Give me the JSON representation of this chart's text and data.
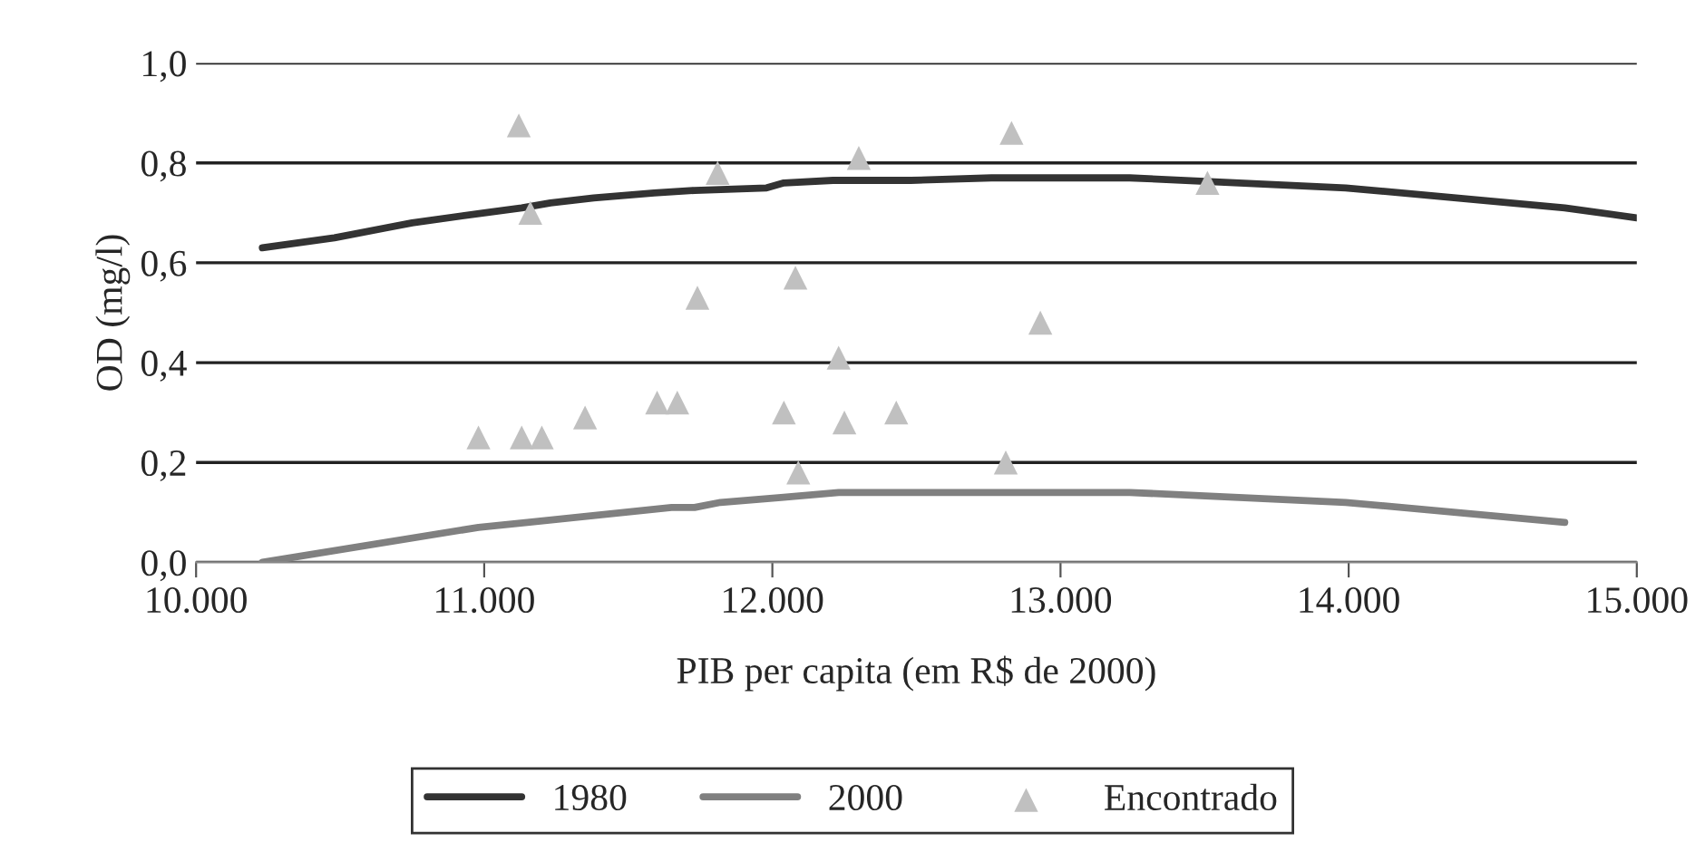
{
  "chart_data": {
    "type": "line",
    "xlabel": "PIB per capita (em R$ de 2000)",
    "ylabel": "OD (mg/l)",
    "xlim": [
      10000,
      15000
    ],
    "xticks": [
      {
        "value": 10000,
        "label": "10.000"
      },
      {
        "value": 11000,
        "label": "11.000"
      },
      {
        "value": 12000,
        "label": "12.000"
      },
      {
        "value": 13000,
        "label": "13.000"
      },
      {
        "value": 14000,
        "label": "14.000"
      },
      {
        "value": 15000,
        "label": "15.000"
      }
    ],
    "ylim": [
      0,
      1
    ],
    "yticks": [
      {
        "value": 0,
        "label": "0,0"
      },
      {
        "value": 0.2,
        "label": "0,2"
      },
      {
        "value": 0.4,
        "label": "0,4"
      },
      {
        "value": 0.6,
        "label": "0,6"
      },
      {
        "value": 0.8,
        "label": "0,8"
      },
      {
        "value": 1,
        "label": "1,0"
      }
    ],
    "grid": "y",
    "legend": "bottom",
    "line_style": "solid",
    "series": [
      {
        "name": "1980",
        "color": "#333333",
        "x": [
          10230,
          10480,
          10750,
          11000,
          11130,
          11230,
          11380,
          11590,
          11730,
          11980,
          12040,
          12210,
          12480,
          12760,
          13240,
          13990,
          14750,
          15000
        ],
        "values": [
          0.63,
          0.65,
          0.68,
          0.7,
          0.71,
          0.72,
          0.73,
          0.74,
          0.745,
          0.75,
          0.76,
          0.765,
          0.765,
          0.77,
          0.77,
          0.75,
          0.71,
          0.69
        ]
      },
      {
        "name": "2000",
        "color": "#808080",
        "x": [
          10230,
          10980,
          11150,
          11650,
          11730,
          11820,
          12030,
          12230,
          12420,
          12760,
          13240,
          13990,
          14750
        ],
        "values": [
          0.0,
          0.07,
          0.08,
          0.11,
          0.11,
          0.12,
          0.13,
          0.14,
          0.14,
          0.14,
          0.14,
          0.12,
          0.08
        ]
      },
      {
        "name": "Encontrado",
        "type": "scatter",
        "marker": "triangle",
        "color": "#c0c0c0",
        "x": [
          11120,
          11160,
          11810,
          12300,
          12080,
          11740,
          12230,
          10980,
          11130,
          11200,
          11350,
          11600,
          11670,
          12040,
          12250,
          12430,
          12090,
          12830,
          13510,
          12930,
          12810
        ],
        "values": [
          0.875,
          0.7,
          0.78,
          0.81,
          0.57,
          0.53,
          0.41,
          0.25,
          0.25,
          0.25,
          0.29,
          0.32,
          0.32,
          0.3,
          0.28,
          0.3,
          0.18,
          0.86,
          0.76,
          0.48,
          0.2
        ]
      }
    ]
  }
}
